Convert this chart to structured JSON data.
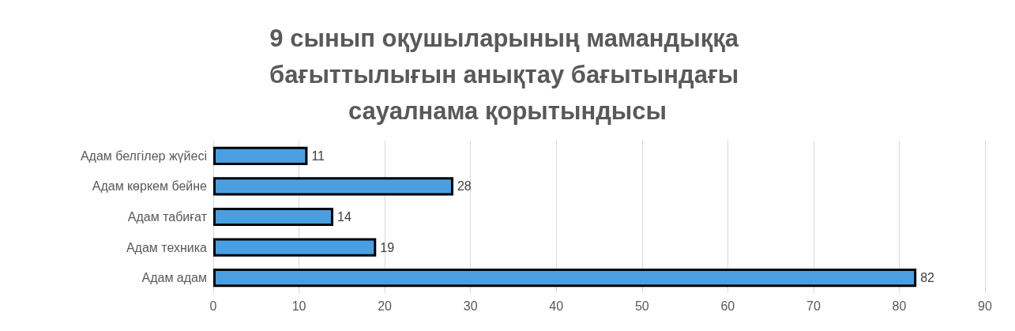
{
  "chart_data": {
    "type": "bar",
    "orientation": "horizontal",
    "title": "9 сынып оқушыларының мамандыққа бағыттылығын анықтау бағытындағы сауалнама қорытындысы",
    "categories": [
      "Адам белгілер жүйесі",
      "Адам көркем бейне",
      "Адам табиғат",
      "Адам техника",
      "Адам адам"
    ],
    "values": [
      11,
      28,
      14,
      19,
      82
    ],
    "color": "#4a9fe0",
    "xlim": [
      0,
      90
    ],
    "xticks": [
      0,
      10,
      20,
      30,
      40,
      50,
      60,
      70,
      80,
      90
    ],
    "grid": "x",
    "data_labels": true
  }
}
